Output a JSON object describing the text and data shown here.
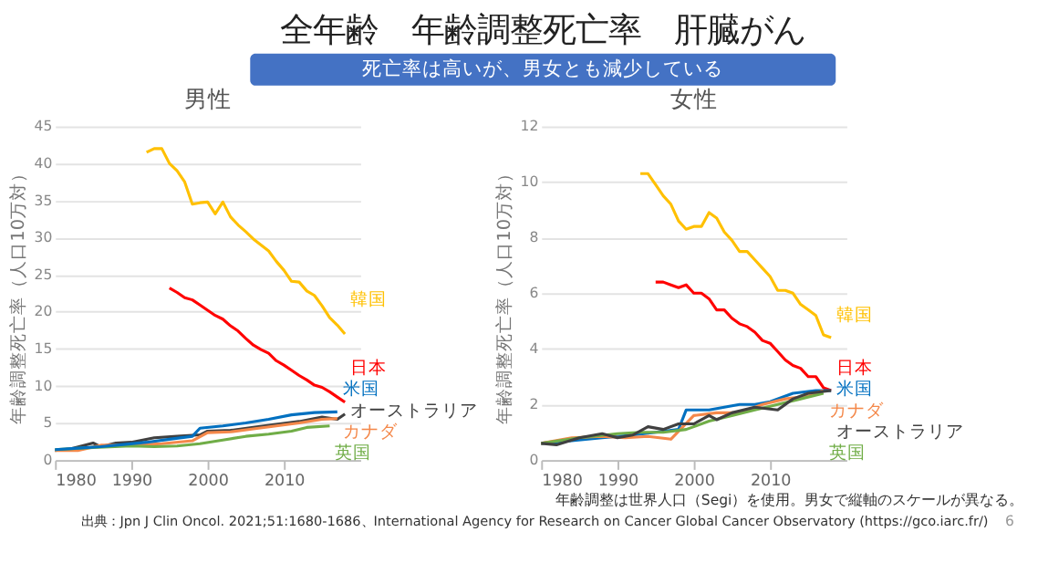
{
  "chart_data": [
    {
      "type": "line",
      "title": "男性",
      "ylabel": "年齢調整死亡率（人口10万対）",
      "xlim": [
        1980,
        2020
      ],
      "xticks": [
        1980,
        1990,
        2000,
        2010
      ],
      "ylim": [
        0,
        45
      ],
      "yticks": [
        0,
        5,
        10,
        15,
        20,
        25,
        30,
        35,
        40,
        45
      ],
      "grid": "y",
      "legend": false,
      "annotations": [
        "全年齢　年齢調整死亡率　肝臓がん",
        "死亡率は高いが、男女とも減少している"
      ],
      "series": [
        {
          "name": "韓国",
          "color": "#ffc000",
          "x": [
            1992,
            1993,
            1994,
            1995,
            1996,
            1997,
            1998,
            1999,
            2000,
            2001,
            2002,
            2003,
            2004,
            2005,
            2006,
            2007,
            2008,
            2009,
            2010,
            2011,
            2012,
            2013,
            2014,
            2015,
            2016,
            2017,
            2018
          ],
          "values": [
            41.5,
            42,
            42,
            40,
            39,
            37.5,
            34.5,
            34.7,
            34.8,
            33.2,
            34.8,
            32.8,
            31.7,
            30.8,
            29.8,
            29,
            28.2,
            26.8,
            25.6,
            24.1,
            24,
            22.8,
            22.2,
            20.8,
            19.2,
            18.2,
            17
          ]
        },
        {
          "name": "日本",
          "color": "#ff0000",
          "x": [
            1995,
            1996,
            1997,
            1998,
            1999,
            2000,
            2001,
            2002,
            2003,
            2004,
            2005,
            2006,
            2007,
            2008,
            2009,
            2010,
            2011,
            2012,
            2013,
            2014,
            2015,
            2016,
            2017,
            2018
          ],
          "values": [
            23.2,
            22.6,
            21.9,
            21.6,
            20.9,
            20.2,
            19.5,
            19,
            18.1,
            17.4,
            16.4,
            15.5,
            14.9,
            14.4,
            13.4,
            12.8,
            12.1,
            11.4,
            10.8,
            10.1,
            9.8,
            9.2,
            8.5,
            7.8
          ]
        },
        {
          "name": "オーストラリア",
          "color": "#404040",
          "x": [
            1980,
            1982,
            1985,
            1986,
            1988,
            1990,
            1993,
            1996,
            1999,
            2000,
            2003,
            2006,
            2009,
            2012,
            2015,
            2017,
            2018
          ],
          "values": [
            1.3,
            1.5,
            2.3,
            1.8,
            2.3,
            2.4,
            3.0,
            3.2,
            3.4,
            3.9,
            4.0,
            4.4,
            4.8,
            5.2,
            5.8,
            5.5,
            6.2
          ]
        },
        {
          "name": "カナダ",
          "color": "#f4884a",
          "x": [
            1980,
            1983,
            1986,
            1990,
            1994,
            1998,
            2000,
            2003,
            2006,
            2009,
            2012,
            2015,
            2017
          ],
          "values": [
            1.3,
            1.3,
            2.0,
            2.0,
            2.2,
            2.6,
            3.7,
            3.8,
            4.2,
            4.6,
            5.0,
            5.5,
            5.6
          ]
        },
        {
          "name": "英国",
          "color": "#70ad47",
          "x": [
            1980,
            1985,
            1990,
            1993,
            1996,
            1999,
            2002,
            2005,
            2008,
            2011,
            2013,
            2016
          ],
          "values": [
            1.4,
            1.7,
            1.9,
            1.8,
            1.9,
            2.2,
            2.7,
            3.2,
            3.5,
            3.9,
            4.4,
            4.6
          ]
        },
        {
          "name": "米国",
          "color": "#0070c0",
          "x": [
            1980,
            1983,
            1986,
            1989,
            1992,
            1995,
            1998,
            1999,
            2002,
            2005,
            2008,
            2011,
            2014,
            2017
          ],
          "values": [
            1.4,
            1.6,
            1.8,
            2.1,
            2.4,
            2.8,
            3.2,
            4.3,
            4.6,
            5.0,
            5.5,
            6.1,
            6.4,
            6.5
          ]
        }
      ]
    },
    {
      "type": "line",
      "title": "女性",
      "ylabel": "年齢調整死亡率（人口10万対）",
      "xlim": [
        1980,
        2020
      ],
      "xticks": [
        1980,
        1990,
        2000,
        2010
      ],
      "ylim": [
        0,
        12
      ],
      "yticks": [
        0,
        2,
        4,
        6,
        8,
        10,
        12
      ],
      "grid": "y",
      "legend": false,
      "annotations": [
        "年齢調整は世界人口（Segi）を使用。男女で縦軸のスケールが異なる。",
        "出典：Jpn J Clin Oncol. 2021;51:1680-1686、International Agency for Research on Cancer Global Cancer Observatory (https://gco.iarc.fr/)",
        "6"
      ],
      "series": [
        {
          "name": "韓国",
          "color": "#ffc000",
          "x": [
            1993,
            1994,
            1995,
            1996,
            1997,
            1998,
            1999,
            2000,
            2001,
            2002,
            2003,
            2004,
            2005,
            2006,
            2007,
            2008,
            2009,
            2010,
            2011,
            2012,
            2013,
            2014,
            2015,
            2016,
            2017,
            2018
          ],
          "values": [
            10.3,
            10.3,
            9.9,
            9.5,
            9.2,
            8.6,
            8.3,
            8.4,
            8.4,
            8.9,
            8.7,
            8.2,
            7.9,
            7.5,
            7.5,
            7.2,
            6.9,
            6.6,
            6.1,
            6.1,
            6.0,
            5.6,
            5.4,
            5.2,
            4.5,
            4.4
          ]
        },
        {
          "name": "日本",
          "color": "#ff0000",
          "x": [
            1995,
            1996,
            1997,
            1998,
            1999,
            2000,
            2001,
            2002,
            2003,
            2004,
            2005,
            2006,
            2007,
            2008,
            2009,
            2010,
            2011,
            2012,
            2013,
            2014,
            2015,
            2016,
            2017,
            2018
          ],
          "values": [
            6.4,
            6.4,
            6.3,
            6.2,
            6.3,
            6.0,
            6.0,
            5.8,
            5.4,
            5.4,
            5.1,
            4.9,
            4.8,
            4.6,
            4.3,
            4.2,
            3.9,
            3.6,
            3.4,
            3.3,
            3.0,
            3.0,
            2.6,
            2.5
          ]
        },
        {
          "name": "米国",
          "color": "#0070c0",
          "x": [
            1980,
            1984,
            1988,
            1992,
            1995,
            1998,
            1999,
            2002,
            2004,
            2006,
            2008,
            2010,
            2013,
            2016,
            2018
          ],
          "values": [
            0.6,
            0.7,
            0.8,
            0.9,
            1.0,
            1.1,
            1.8,
            1.8,
            1.9,
            2.0,
            2.0,
            2.1,
            2.4,
            2.5,
            2.5
          ]
        },
        {
          "name": "カナダ",
          "color": "#f4884a",
          "x": [
            1980,
            1984,
            1988,
            1991,
            1994,
            1997,
            2000,
            2003,
            2006,
            2009,
            2012,
            2015,
            2017
          ],
          "values": [
            0.6,
            0.8,
            0.85,
            0.8,
            0.85,
            0.75,
            1.6,
            1.7,
            1.7,
            2.0,
            2.2,
            2.3,
            2.5
          ]
        },
        {
          "name": "英国",
          "color": "#70ad47",
          "x": [
            1980,
            1985,
            1990,
            1993,
            1996,
            1999,
            2002,
            2005,
            2008,
            2011,
            2014,
            2017
          ],
          "values": [
            0.6,
            0.8,
            0.95,
            1.0,
            1.0,
            1.1,
            1.4,
            1.6,
            1.8,
            2.0,
            2.2,
            2.4
          ]
        },
        {
          "name": "オーストラリア",
          "color": "#404040",
          "x": [
            1980,
            1982,
            1985,
            1988,
            1990,
            1992,
            1994,
            1996,
            1998,
            2000,
            2002,
            2003,
            2005,
            2008,
            2011,
            2013,
            2015,
            2018
          ],
          "values": [
            0.6,
            0.55,
            0.8,
            0.95,
            0.8,
            0.9,
            1.2,
            1.1,
            1.3,
            1.3,
            1.6,
            1.45,
            1.7,
            1.9,
            1.8,
            2.2,
            2.4,
            2.5
          ]
        }
      ]
    }
  ]
}
